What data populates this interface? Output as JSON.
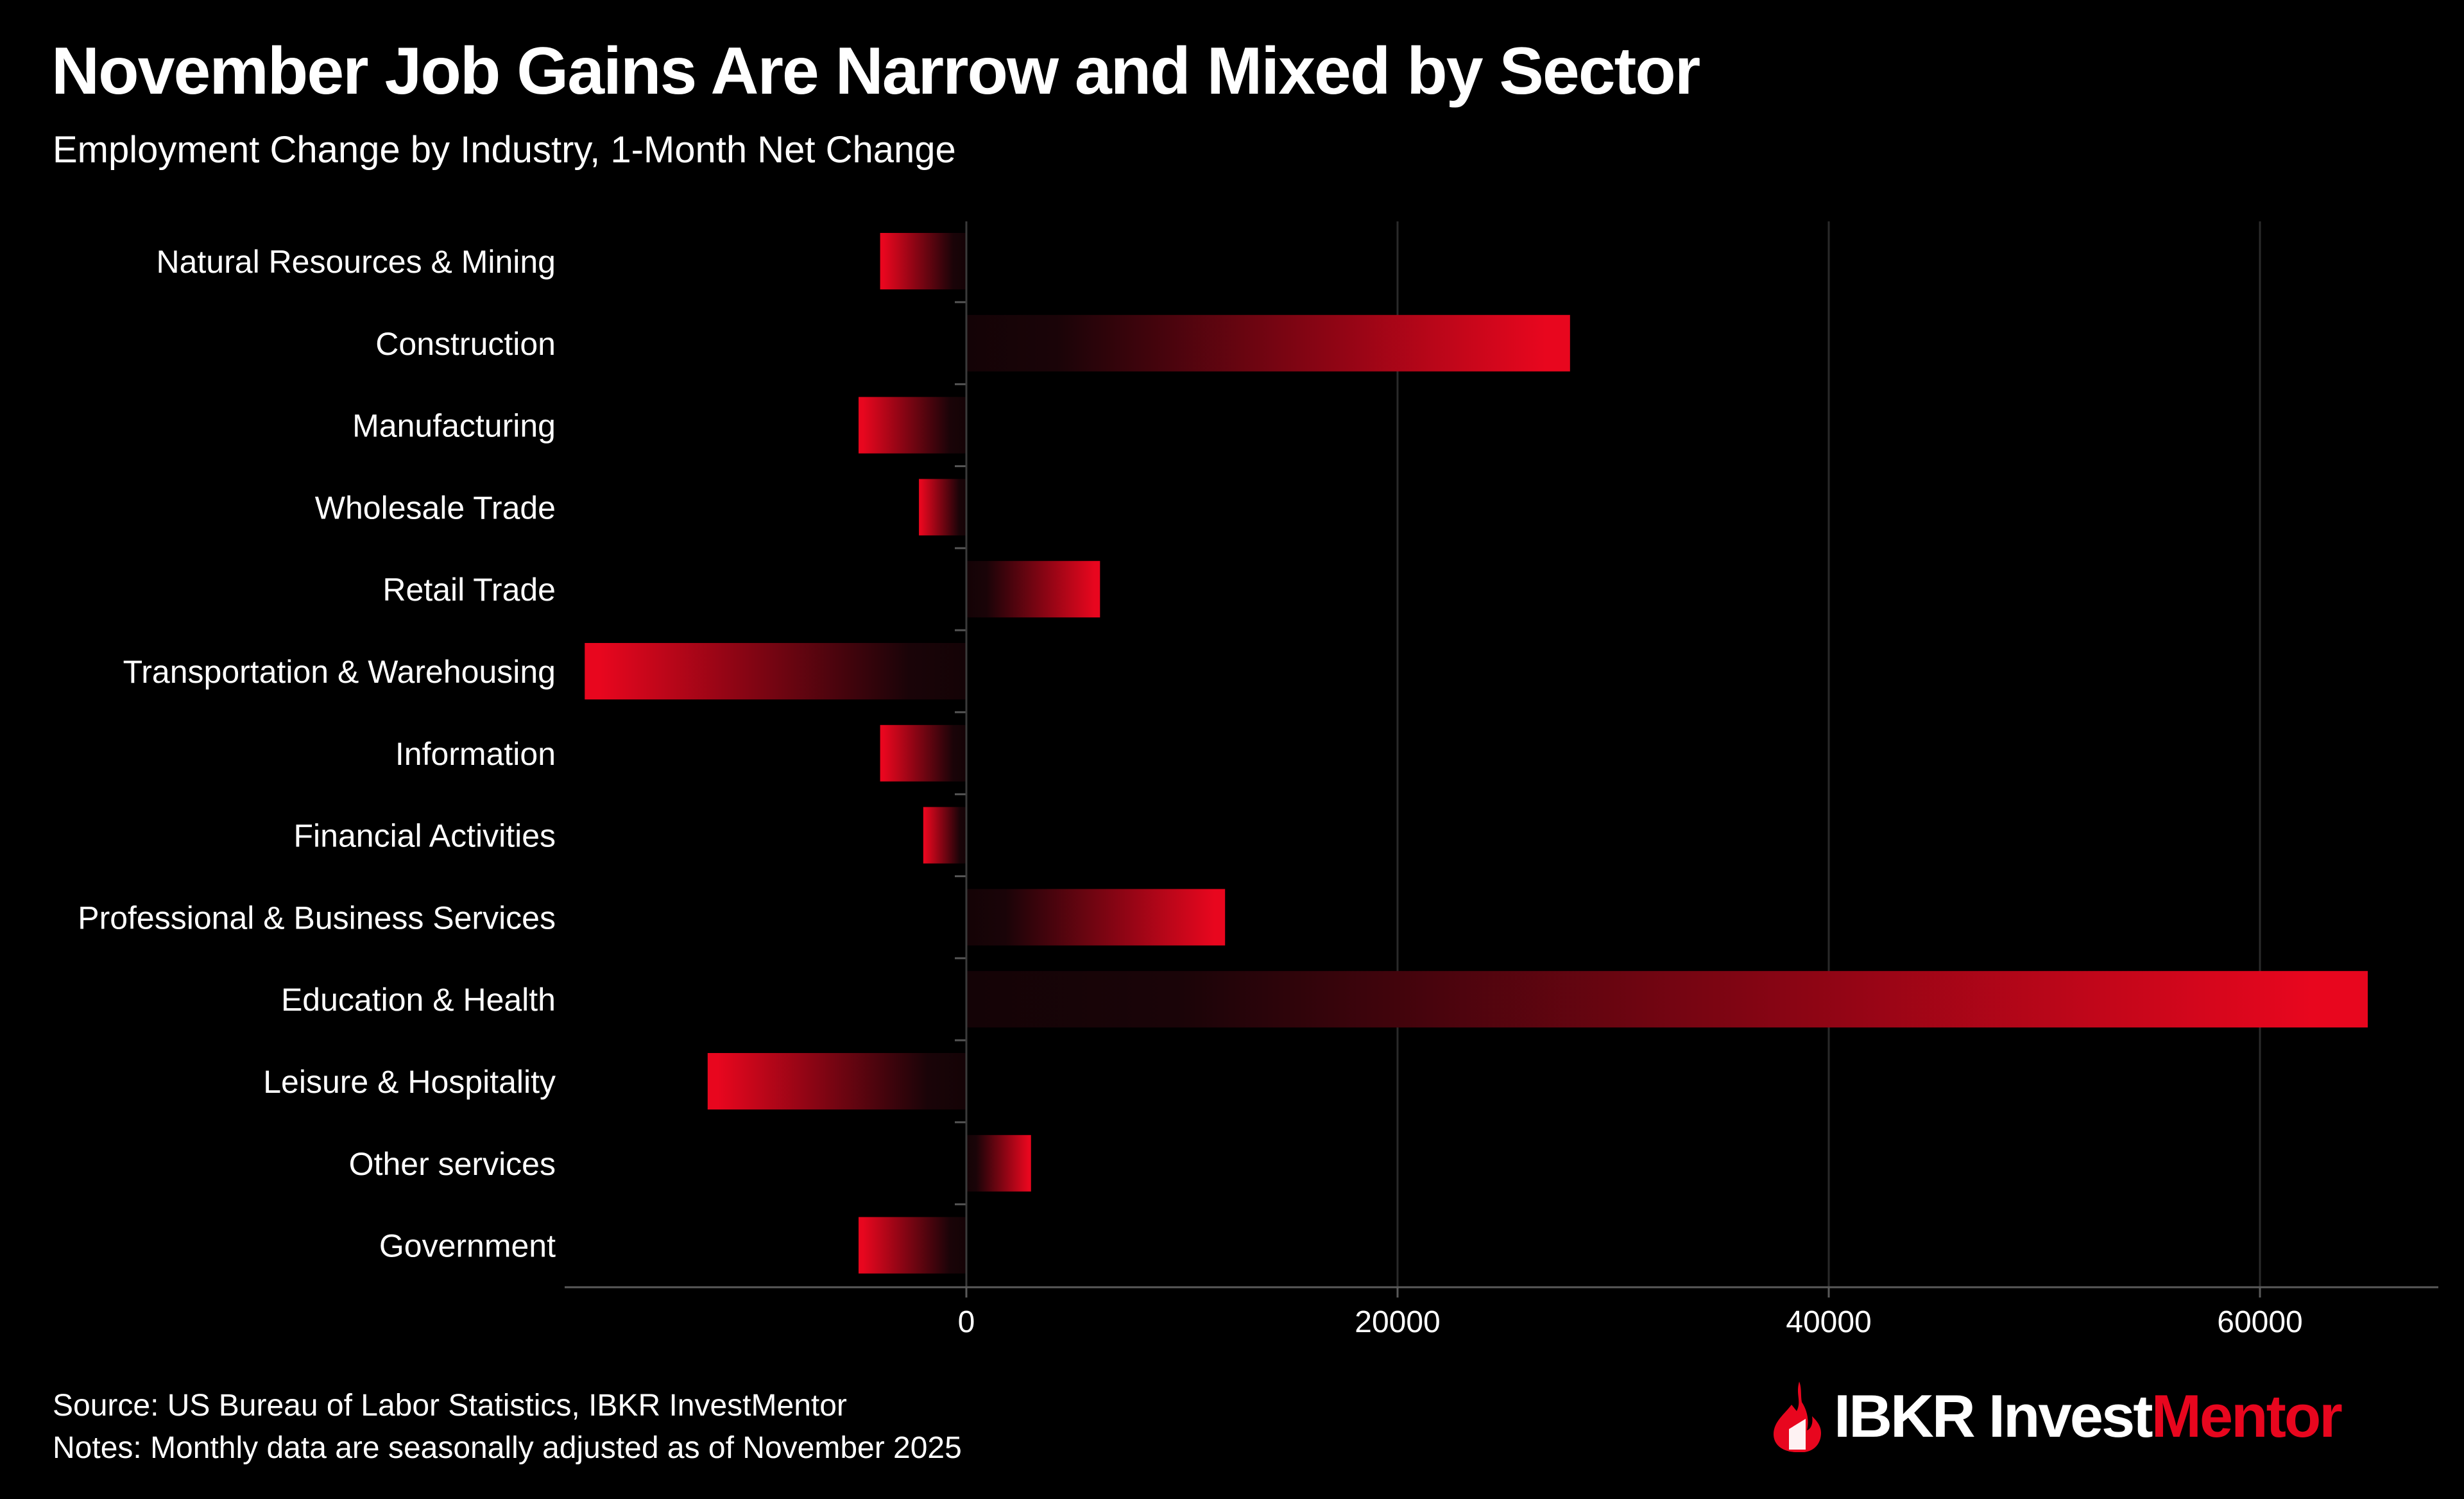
{
  "header": {
    "title": "November Job Gains Are Narrow and Mixed by Sector",
    "subtitle": "Employment Change by Industry, 1-Month Net Change"
  },
  "footer": {
    "source": "Source: US Bureau of Labor Statistics, IBKR InvestMentor",
    "notes": "Notes: Monthly data are seasonally adjusted as of November 2025"
  },
  "brand": {
    "name_part1": "IBKR Invest",
    "name_part2": "Mentor",
    "accent_color": "#e8061e",
    "icon": "ibkr-flame-icon"
  },
  "chart_data": {
    "type": "bar",
    "orientation": "horizontal",
    "title": "November Job Gains Are Narrow and Mixed by Sector",
    "subtitle": "Employment Change by Industry, 1-Month Net Change",
    "xlabel": "",
    "ylabel": "",
    "xlim": [
      -18500,
      68000
    ],
    "x_ticks": [
      0,
      20000,
      40000,
      60000
    ],
    "x_tick_labels": [
      "0",
      "20000",
      "40000",
      "60000"
    ],
    "grid": "vertical",
    "bar_color": "#e8061e",
    "categories": [
      "Natural Resources & Mining",
      "Construction",
      "Manufacturing",
      "Wholesale Trade",
      "Retail Trade",
      "Transportation & Warehousing",
      "Information",
      "Financial Activities",
      "Professional & Business Services",
      "Education & Health",
      "Leisure & Hospitality",
      "Other services",
      "Government"
    ],
    "values": [
      -4000,
      28000,
      -5000,
      -2200,
      6200,
      -17700,
      -4000,
      -2000,
      12000,
      65000,
      -12000,
      3000,
      -5000
    ]
  }
}
